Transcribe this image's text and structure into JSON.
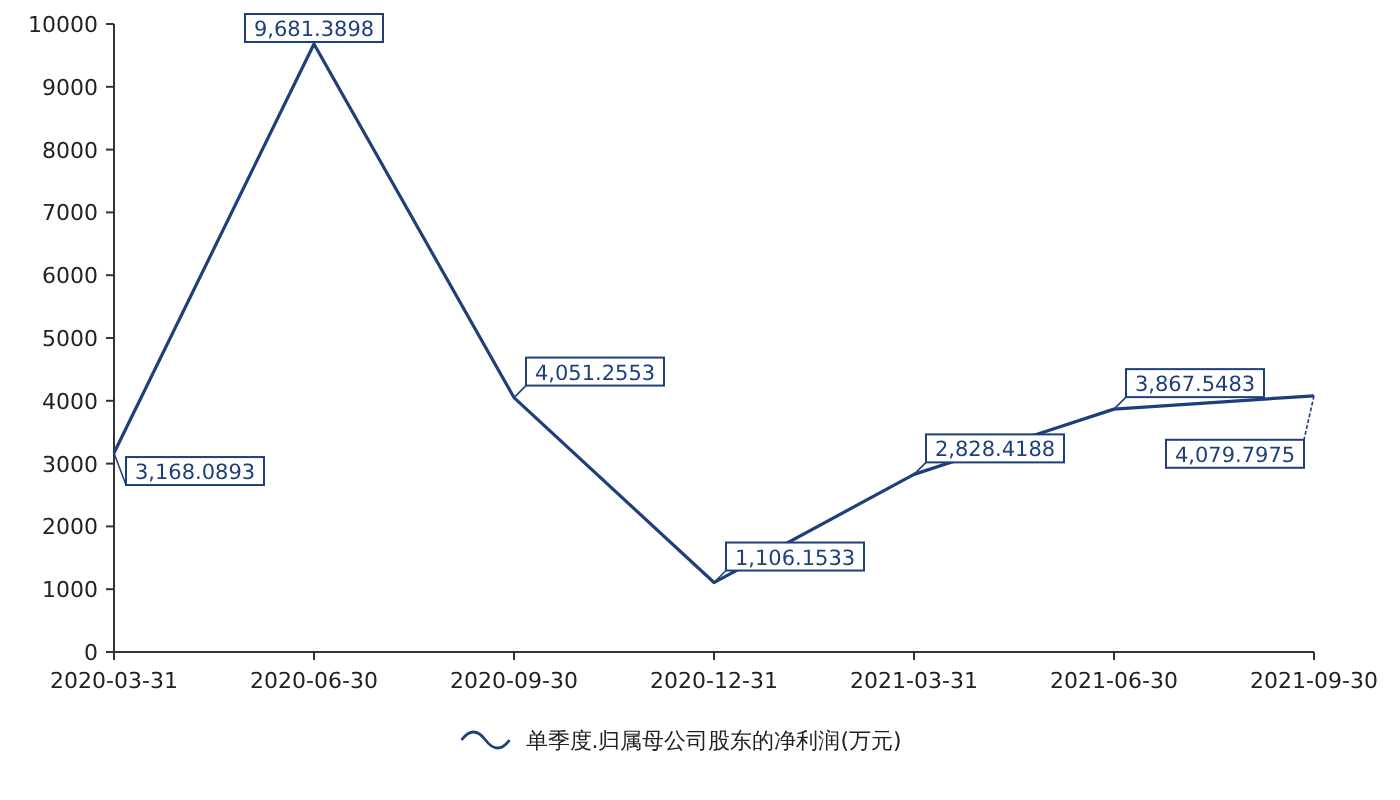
{
  "chart_data": {
    "type": "line",
    "categories": [
      "2020-03-31",
      "2020-06-30",
      "2020-09-30",
      "2020-12-31",
      "2021-03-31",
      "2021-06-30",
      "2021-09-30"
    ],
    "series": [
      {
        "name": "单季度.归属母公司股东的净利润(万元)",
        "color": "#1f3f7a",
        "values": [
          3168.0893,
          9681.3898,
          4051.2553,
          1106.1533,
          2828.4188,
          3867.5483,
          4079.7975
        ],
        "value_labels": [
          "3,168.0893",
          "9,681.3898",
          "4,051.2553",
          "1,106.1533",
          "2,828.4188",
          "3,867.5483",
          "4,079.7975"
        ]
      }
    ],
    "ylim": [
      0,
      10000
    ],
    "yticks": [
      0,
      1000,
      2000,
      3000,
      4000,
      5000,
      6000,
      7000,
      8000,
      9000,
      10000
    ],
    "grid": false,
    "legend": "bottom",
    "marker": "none",
    "line_style": "solid"
  }
}
